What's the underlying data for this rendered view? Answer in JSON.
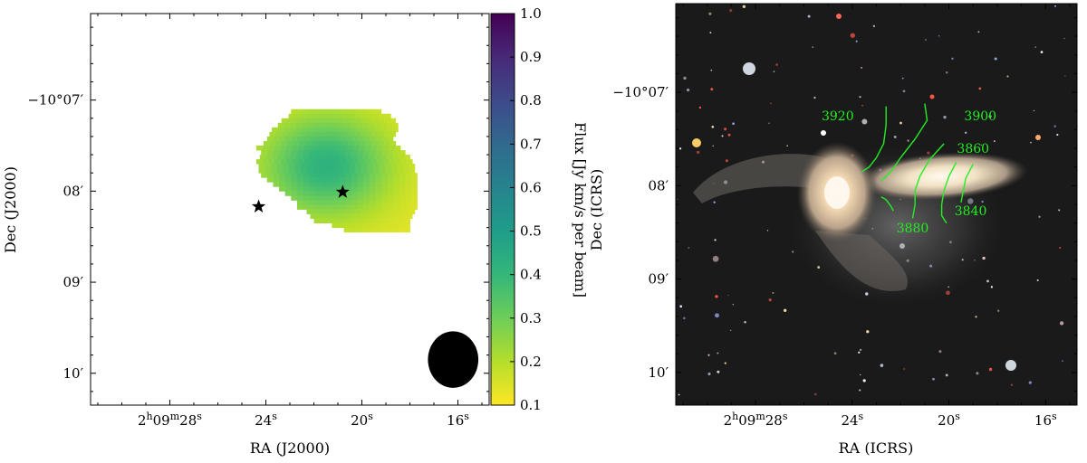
{
  "chart_data": [
    {
      "panel": "left",
      "type": "heatmap",
      "title": "",
      "xlabel": "RA (J2000)",
      "ylabel": "Dec (J2000)",
      "x_ticks": [
        {
          "label_main": "2",
          "label_parts": [
            [
              "2",
              "h"
            ],
            [
              "09",
              "m"
            ],
            [
              "28",
              "s"
            ]
          ],
          "value_s": 28
        },
        {
          "label_parts": [
            [
              "24",
              "s"
            ]
          ],
          "value_s": 24
        },
        {
          "label_parts": [
            [
              "20",
              "s"
            ]
          ],
          "value_s": 20
        },
        {
          "label_parts": [
            [
              "16",
              "s"
            ]
          ],
          "value_s": 16
        }
      ],
      "y_ticks": [
        {
          "label": "−10°07′",
          "value_arcmin": 7
        },
        {
          "label": "08′",
          "value_arcmin": 8
        },
        {
          "label": "09′",
          "value_arcmin": 9
        },
        {
          "label": "10′",
          "value_arcmin": 10
        }
      ],
      "xlim_s": [
        31.3,
        14.7
      ],
      "ylim_arcmin": [
        10.35,
        6.05
      ],
      "colorbar": {
        "label": "Flux [Jy km/s per beam]",
        "range": [
          0.1,
          1.0
        ],
        "ticks": [
          "0.1",
          "0.2",
          "0.3",
          "0.4",
          "0.5",
          "0.6",
          "0.7",
          "0.8",
          "0.9",
          "1.0"
        ],
        "colormap": "viridis_r"
      },
      "emission": {
        "peak_value": 0.42,
        "peak_ra_s": 21.5,
        "peak_dec_arcmin": 7.72,
        "min_value": 0.13,
        "pixel_size_s": 0.25,
        "pixel_size_arcmin": 0.05,
        "rows": [
          {
            "dec_arcmin": 7.1,
            "ra_s": [
              19.2,
              22.8
            ]
          },
          {
            "dec_arcmin": 7.15,
            "ra_s": [
              18.8,
              23.0
            ]
          },
          {
            "dec_arcmin": 7.2,
            "ra_s": [
              18.6,
              23.2
            ]
          },
          {
            "dec_arcmin": 7.25,
            "ra_s": [
              18.5,
              23.4
            ]
          },
          {
            "dec_arcmin": 7.3,
            "ra_s": [
              18.5,
              23.6
            ]
          },
          {
            "dec_arcmin": 7.35,
            "ra_s": [
              18.6,
              23.8
            ]
          },
          {
            "dec_arcmin": 7.4,
            "ra_s": [
              18.7,
              23.9
            ]
          },
          {
            "dec_arcmin": 7.45,
            "ra_s": [
              18.6,
              24.1
            ]
          },
          {
            "dec_arcmin": 7.5,
            "ra_s": [
              18.4,
              24.2
            ]
          },
          {
            "dec_arcmin": 7.55,
            "ra_s": [
              18.2,
              24.2
            ]
          },
          {
            "dec_arcmin": 7.6,
            "ra_s": [
              18.0,
              24.2
            ]
          },
          {
            "dec_arcmin": 7.65,
            "ra_s": [
              17.9,
              24.2
            ]
          },
          {
            "dec_arcmin": 7.7,
            "ra_s": [
              17.8,
              24.2
            ]
          },
          {
            "dec_arcmin": 7.75,
            "ra_s": [
              17.8,
              24.1
            ]
          },
          {
            "dec_arcmin": 7.8,
            "ra_s": [
              17.7,
              24.0
            ]
          },
          {
            "dec_arcmin": 7.85,
            "ra_s": [
              17.7,
              23.8
            ]
          },
          {
            "dec_arcmin": 7.9,
            "ra_s": [
              17.7,
              23.5
            ]
          },
          {
            "dec_arcmin": 7.95,
            "ra_s": [
              17.7,
              23.3
            ]
          },
          {
            "dec_arcmin": 8.0,
            "ra_s": [
              17.7,
              23.1
            ]
          },
          {
            "dec_arcmin": 8.05,
            "ra_s": [
              17.7,
              22.9
            ]
          },
          {
            "dec_arcmin": 8.1,
            "ra_s": [
              17.7,
              22.7
            ]
          },
          {
            "dec_arcmin": 8.15,
            "ra_s": [
              17.7,
              22.5
            ]
          },
          {
            "dec_arcmin": 8.2,
            "ra_s": [
              17.8,
              22.3
            ]
          },
          {
            "dec_arcmin": 8.25,
            "ra_s": [
              17.9,
              22.1
            ]
          },
          {
            "dec_arcmin": 8.3,
            "ra_s": [
              18.0,
              21.8
            ]
          },
          {
            "dec_arcmin": 8.35,
            "ra_s": [
              18.0,
              21.2
            ]
          },
          {
            "dec_arcmin": 8.4,
            "ra_s": [
              18.0,
              20.6
            ]
          }
        ]
      },
      "markers": [
        {
          "symbol": "star",
          "ra_s": 24.3,
          "dec_arcmin": 8.17
        },
        {
          "symbol": "star",
          "ra_s": 20.8,
          "dec_arcmin": 8.01
        }
      ],
      "beam": {
        "ra_s": 16.2,
        "dec_arcmin": 9.85,
        "width_s": 2.1,
        "height_arcmin": 0.62,
        "color": "#000000"
      }
    },
    {
      "panel": "right",
      "type": "image",
      "title": "",
      "xlabel": "RA (ICRS)",
      "ylabel": "Dec (ICRS)",
      "x_ticks": [
        {
          "label_parts": [
            [
              "2",
              "h"
            ],
            [
              "09",
              "m"
            ],
            [
              "28",
              "s"
            ]
          ],
          "value_s": 28
        },
        {
          "label_parts": [
            [
              "24",
              "s"
            ]
          ],
          "value_s": 24
        },
        {
          "label_parts": [
            [
              "20",
              "s"
            ]
          ],
          "value_s": 20
        },
        {
          "label_parts": [
            [
              "16",
              "s"
            ]
          ],
          "value_s": 16
        }
      ],
      "y_ticks": [
        {
          "label": "−10°07′",
          "value_arcmin": 7
        },
        {
          "label": "08′",
          "value_arcmin": 8
        },
        {
          "label": "09′",
          "value_arcmin": 9
        },
        {
          "label": "10′",
          "value_arcmin": 10
        }
      ],
      "xlim_s": [
        31.3,
        14.7
      ],
      "ylim_arcmin": [
        10.35,
        6.05
      ],
      "contours": {
        "color": "#22ee22",
        "levels": [
          {
            "label": "3920",
            "label_ra_s": 24.6,
            "label_dec_arcmin": 7.25,
            "path": [
              [
                22.6,
                7.15
              ],
              [
                22.6,
                7.35
              ],
              [
                22.7,
                7.55
              ],
              [
                23.0,
                7.7
              ],
              [
                23.3,
                7.8
              ],
              [
                23.6,
                7.85
              ]
            ]
          },
          {
            "label": "3900",
            "label_ra_s": 18.7,
            "label_dec_arcmin": 7.25,
            "path": [
              [
                21.0,
                7.12
              ],
              [
                20.9,
                7.3
              ],
              [
                21.4,
                7.5
              ],
              [
                22.0,
                7.7
              ],
              [
                22.4,
                7.85
              ],
              [
                22.8,
                7.95
              ]
            ]
          },
          {
            "label": "3880",
            "label_ra_s": 21.5,
            "label_dec_arcmin": 8.45,
            "path": [
              [
                20.2,
                7.55
              ],
              [
                20.8,
                7.72
              ],
              [
                21.2,
                7.9
              ],
              [
                21.4,
                8.05
              ],
              [
                21.4,
                8.2
              ],
              [
                21.5,
                8.35
              ]
            ]
          },
          {
            "label": "3860",
            "label_ra_s": 19.0,
            "label_dec_arcmin": 7.6,
            "path": [
              [
                19.7,
                7.75
              ],
              [
                20.0,
                7.9
              ],
              [
                20.2,
                8.05
              ],
              [
                20.3,
                8.2
              ],
              [
                20.3,
                8.32
              ],
              [
                20.1,
                8.4
              ]
            ]
          },
          {
            "label": "3840",
            "label_ra_s": 19.1,
            "label_dec_arcmin": 8.27,
            "path": [
              [
                19.0,
                7.77
              ],
              [
                19.3,
                7.92
              ],
              [
                19.4,
                8.05
              ],
              [
                19.5,
                8.18
              ]
            ]
          },
          {
            "label": "",
            "path": [
              [
                22.8,
                8.12
              ],
              [
                22.6,
                8.15
              ],
              [
                22.4,
                8.22
              ],
              [
                22.3,
                8.27
              ]
            ]
          }
        ]
      }
    }
  ]
}
